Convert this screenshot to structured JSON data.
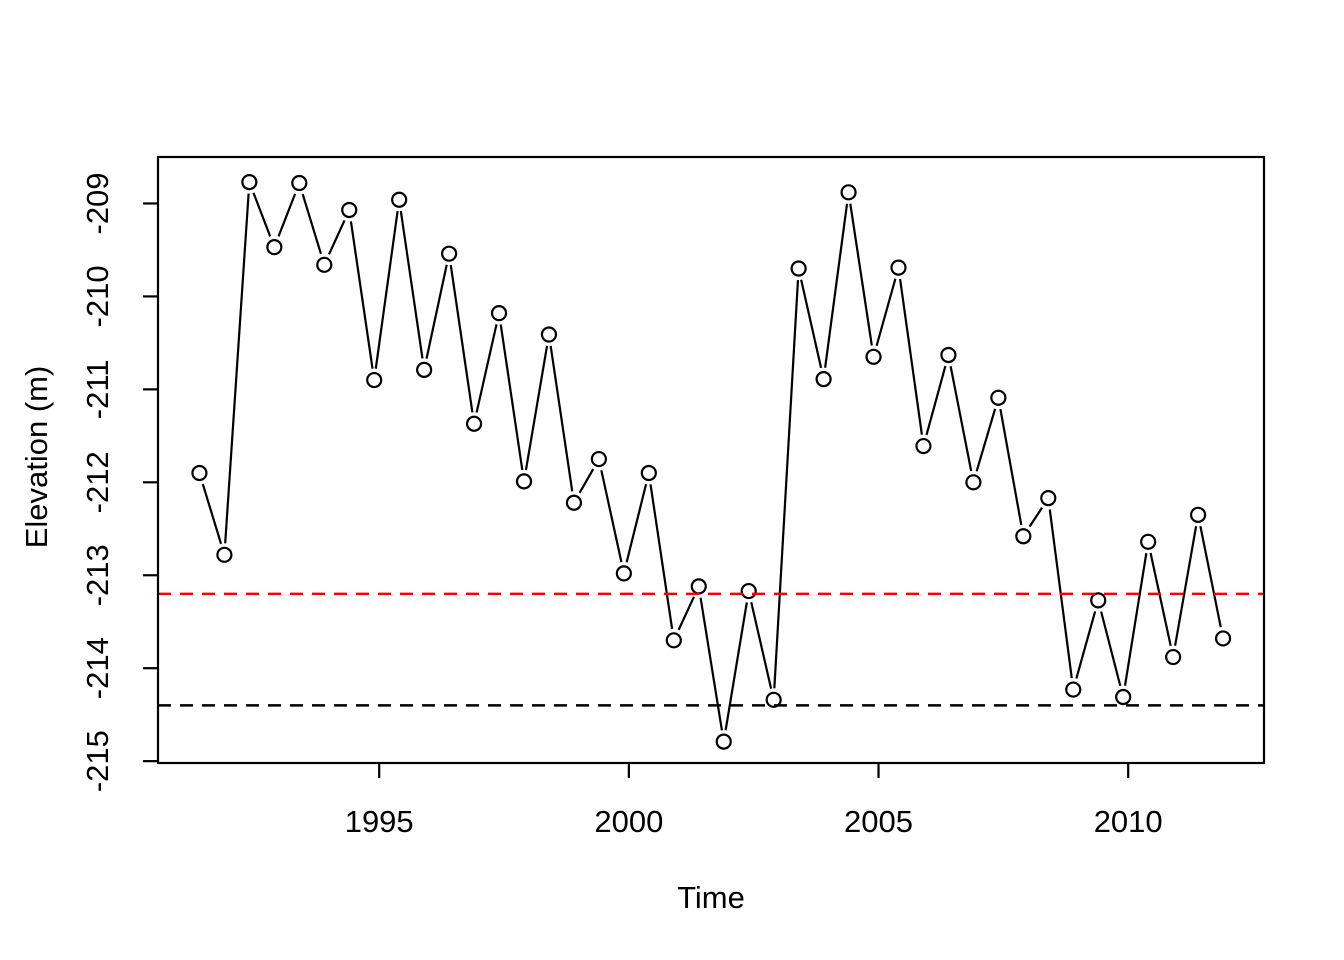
{
  "figure": {
    "background": "#ffffff",
    "foreground": "#000000"
  },
  "chart_data": {
    "type": "line",
    "style": "r-base-plot-type-b",
    "title": "",
    "xlabel": "Time",
    "ylabel": "Elevation (m)",
    "xlim": [
      1990.57,
      2012.72
    ],
    "ylim": [
      -215.02,
      -208.5
    ],
    "grid": false,
    "legend": null,
    "marker": {
      "shape": "open-circle",
      "radius_px": 7,
      "color": "#000000"
    },
    "x_ticks": {
      "values": [
        1995,
        2000,
        2005,
        2010
      ],
      "labels": [
        "1995",
        "2000",
        "2005",
        "2010"
      ]
    },
    "y_ticks": {
      "values": [
        -215,
        -214,
        -213,
        -212,
        -211,
        -210,
        -209
      ],
      "labels": [
        "-215",
        "-214",
        "-213",
        "-212",
        "-211",
        "-210",
        "-209"
      ]
    },
    "series": [
      {
        "name": "elevation",
        "color": "#000000",
        "x": [
          1991.4,
          1991.9,
          1992.4,
          1992.9,
          1993.4,
          1993.9,
          1994.4,
          1994.9,
          1995.4,
          1995.9,
          1996.4,
          1996.9,
          1997.4,
          1997.9,
          1998.4,
          1998.9,
          1999.4,
          1999.9,
          2000.4,
          2000.9,
          2001.4,
          2001.9,
          2002.4,
          2002.9,
          2003.4,
          2003.9,
          2004.4,
          2004.9,
          2005.4,
          2005.9,
          2006.4,
          2006.9,
          2007.4,
          2007.9,
          2008.4,
          2008.9,
          2009.4,
          2009.9,
          2010.4,
          2010.9,
          2011.4,
          2011.9
        ],
        "y": [
          -211.9,
          -212.78,
          -208.77,
          -209.47,
          -208.78,
          -209.66,
          -209.07,
          -210.9,
          -208.96,
          -210.79,
          -209.54,
          -211.37,
          -210.18,
          -211.99,
          -210.41,
          -212.22,
          -211.75,
          -212.98,
          -211.9,
          -213.7,
          -213.12,
          -214.79,
          -213.17,
          -214.34,
          -209.7,
          -210.89,
          -208.88,
          -210.65,
          -209.69,
          -211.61,
          -210.63,
          -212.0,
          -211.09,
          -212.58,
          -212.17,
          -214.23,
          -213.27,
          -214.31,
          -212.64,
          -213.88,
          -212.35,
          -213.68
        ]
      }
    ],
    "reference_lines": [
      {
        "name": "red-dashed-line",
        "orientation": "horizontal",
        "value": -213.2,
        "color": "#FF0000",
        "line_style": "dashed"
      },
      {
        "name": "black-dashed-line",
        "orientation": "horizontal",
        "value": -214.4,
        "color": "#000000",
        "line_style": "dashed"
      }
    ]
  }
}
